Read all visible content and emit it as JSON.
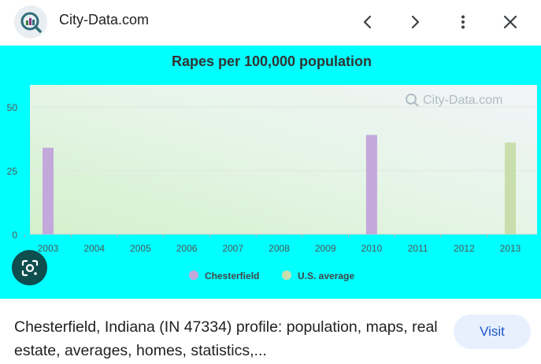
{
  "header": {
    "site_name": "City-Data.com",
    "logo_icon": "city-data-logo-icon",
    "back_icon": "chevron-left-icon",
    "forward_icon": "chevron-right-icon",
    "more_icon": "more-vert-icon",
    "close_icon": "close-icon"
  },
  "colors": {
    "chart_background": "#00ffff",
    "chesterfield": "#c3a8dc",
    "us_average": "#c8deac",
    "visit_button_bg": "#e8f0fe",
    "visit_button_text": "#1a56c8"
  },
  "chart_data": {
    "type": "bar",
    "title": "Rapes per 100,000 population",
    "watermark": "City-Data.com",
    "categories": [
      "2003",
      "2004",
      "2005",
      "2006",
      "2007",
      "2008",
      "2009",
      "2010",
      "2011",
      "2012",
      "2013"
    ],
    "yticks": [
      "0",
      "25",
      "50"
    ],
    "ylim": [
      0,
      60
    ],
    "series": [
      {
        "name": "Chesterfield",
        "values": [
          34,
          null,
          null,
          null,
          null,
          null,
          null,
          39,
          null,
          null,
          null
        ]
      },
      {
        "name": "U.S. average",
        "values": [
          null,
          null,
          null,
          null,
          null,
          null,
          null,
          null,
          null,
          null,
          36
        ]
      }
    ],
    "legend_position": "bottom"
  },
  "lens_icon": "google-lens-icon",
  "result": {
    "caption": "Chesterfield, Indiana (IN 47334) profile: population, maps, real estate, averages, homes, statistics,...",
    "visit_label": "Visit"
  }
}
